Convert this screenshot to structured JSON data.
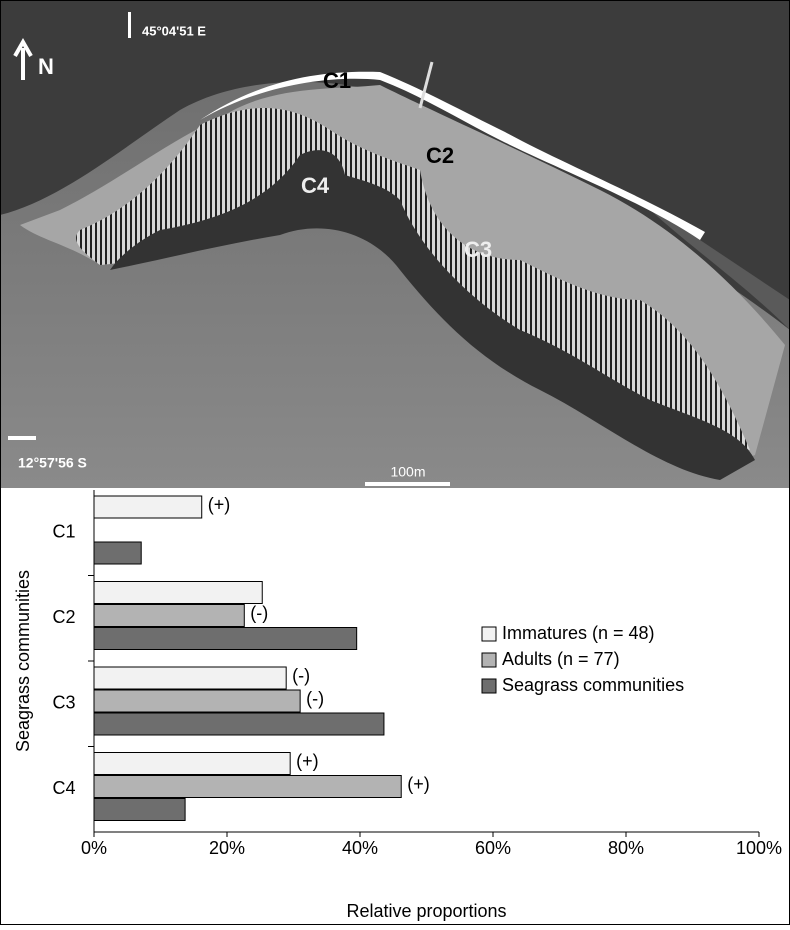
{
  "map": {
    "longitude": "45°04'51 E",
    "north": "N",
    "latitude": "12°57'56 S",
    "scale": "100m",
    "zones": [
      "C1",
      "C2",
      "C3",
      "C4"
    ]
  },
  "chart_data": {
    "type": "hbar",
    "categories": [
      "C1",
      "C2",
      "C3",
      "C4"
    ],
    "series": [
      {
        "name": "Immatures (n = 48)",
        "color": "#f2f2f2",
        "values": [
          16.2,
          25.3,
          28.9,
          29.5
        ],
        "significance": [
          "(+)",
          null,
          "(-)",
          "(+)"
        ]
      },
      {
        "name": "Adults (n = 77)",
        "color": "#b3b3b3",
        "values": [
          null,
          22.6,
          31.0,
          46.2
        ],
        "significance": [
          null,
          "(-)",
          "(-)",
          "(+)"
        ]
      },
      {
        "name": "Seagrass communities",
        "color": "#6e6e6e",
        "values": [
          7.1,
          39.5,
          43.6,
          13.7
        ]
      }
    ],
    "xlim": [
      0,
      100
    ],
    "xticks": [
      {
        "value": 0,
        "label": "0%"
      },
      {
        "value": 20,
        "label": "20%"
      },
      {
        "value": 40,
        "label": "40%"
      },
      {
        "value": 60,
        "label": "60%"
      },
      {
        "value": 80,
        "label": "80%"
      },
      {
        "value": 100,
        "label": "100%"
      }
    ],
    "xlabel": "Relative proportions",
    "ylabel": "Seagrass communities",
    "legend": "right"
  }
}
